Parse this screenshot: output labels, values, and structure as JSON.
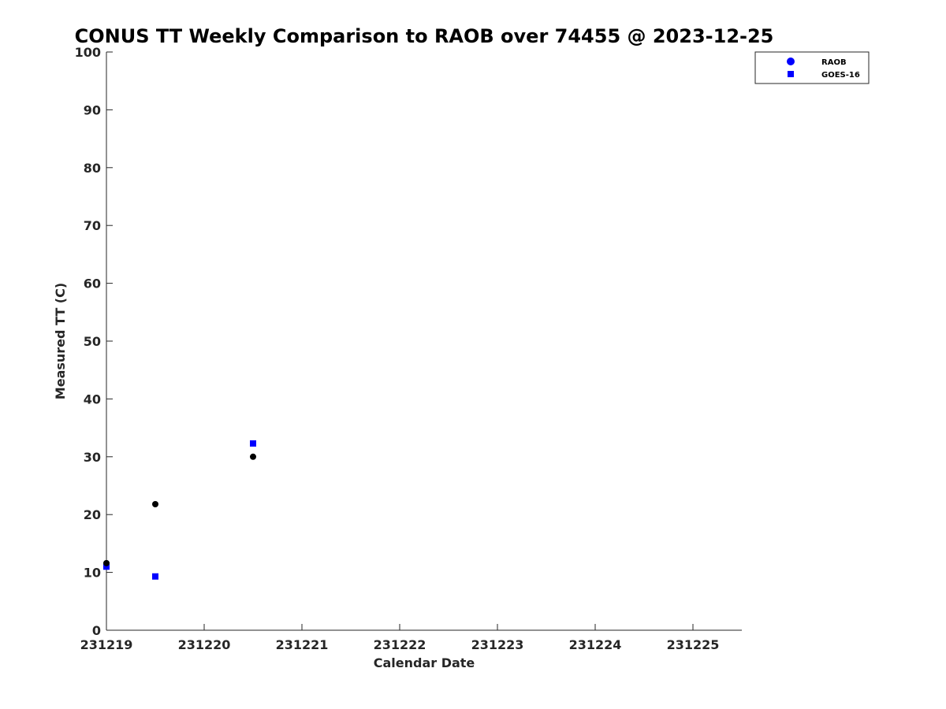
{
  "chart_data": {
    "type": "scatter",
    "title": "CONUS TT Weekly Comparison to RAOB over 74455 @ 2023-12-25",
    "xlabel": "Calendar Date",
    "ylabel": "Measured TT (C)",
    "xlim": [
      231219,
      231225.5
    ],
    "ylim": [
      0,
      100
    ],
    "x_ticks": [
      231219,
      231220,
      231221,
      231222,
      231223,
      231224,
      231225
    ],
    "x_tick_labels": [
      "231219",
      "231220",
      "231221",
      "231222",
      "231223",
      "231224",
      "231225"
    ],
    "y_ticks": [
      0,
      10,
      20,
      30,
      40,
      50,
      60,
      70,
      80,
      90,
      100
    ],
    "y_tick_labels": [
      "0",
      "10",
      "20",
      "30",
      "40",
      "50",
      "60",
      "70",
      "80",
      "90",
      "100"
    ],
    "grid": false,
    "legend_position": "top-right, outside plot",
    "series": [
      {
        "name": "RAOB",
        "marker": "circle",
        "legend_color": "#0000ff",
        "point_color": "#000000",
        "points": [
          {
            "x": 231219.0,
            "y": 11.6
          },
          {
            "x": 231219.5,
            "y": 21.8
          },
          {
            "x": 231220.5,
            "y": 30.0
          }
        ]
      },
      {
        "name": "GOES-16",
        "marker": "square",
        "legend_color": "#0000ff",
        "point_color": "#0000ff",
        "points": [
          {
            "x": 231219.0,
            "y": 11.0
          },
          {
            "x": 231219.5,
            "y": 9.3
          },
          {
            "x": 231220.5,
            "y": 32.3
          }
        ]
      }
    ]
  }
}
